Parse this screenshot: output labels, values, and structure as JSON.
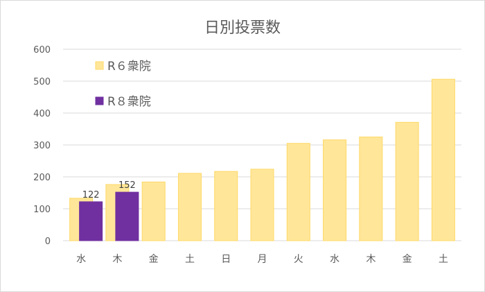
{
  "chart_data": {
    "type": "bar",
    "title": "日別投票数",
    "xlabel": "",
    "ylabel": "",
    "categories": [
      "水",
      "木",
      "金",
      "土",
      "日",
      "月",
      "火",
      "水",
      "木",
      "金",
      "土"
    ],
    "yticks": [
      0,
      100,
      200,
      300,
      400,
      500,
      600
    ],
    "ylim": [
      0,
      600
    ],
    "grid": true,
    "legend_position": "top-left",
    "series": [
      {
        "name": "R６衆院",
        "color": "#FFE699",
        "values": [
          133,
          176,
          184,
          211,
          217,
          224,
          305,
          316,
          325,
          371,
          506
        ]
      },
      {
        "name": "R８衆院",
        "color": "#7030A0",
        "values": [
          122,
          152,
          null,
          null,
          null,
          null,
          null,
          null,
          null,
          null,
          null
        ],
        "data_labels": [
          "122",
          "152"
        ]
      }
    ]
  }
}
